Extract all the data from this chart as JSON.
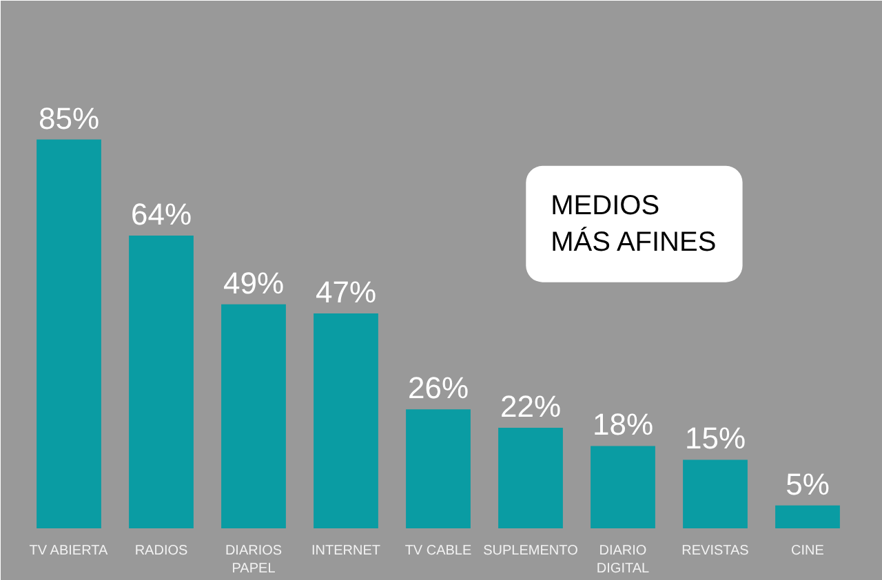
{
  "chart_data": {
    "type": "bar",
    "title": "MEDIOS\nMÁS AFINES",
    "categories": [
      "TV ABIERTA",
      "RADIOS",
      "DIARIOS\nPAPEL",
      "INTERNET",
      "TV CABLE",
      "SUPLEMENTO",
      "DIARIO\nDIGITAL",
      "REVISTAS",
      "CINE"
    ],
    "values": [
      85,
      64,
      49,
      47,
      26,
      22,
      18,
      15,
      5
    ],
    "color": "#0a9ca3",
    "value_labels": [
      "85%",
      "64%",
      "49%",
      "47%",
      "26%",
      "22%",
      "18%",
      "15%",
      "5%"
    ],
    "tick_labels": "x"
  }
}
